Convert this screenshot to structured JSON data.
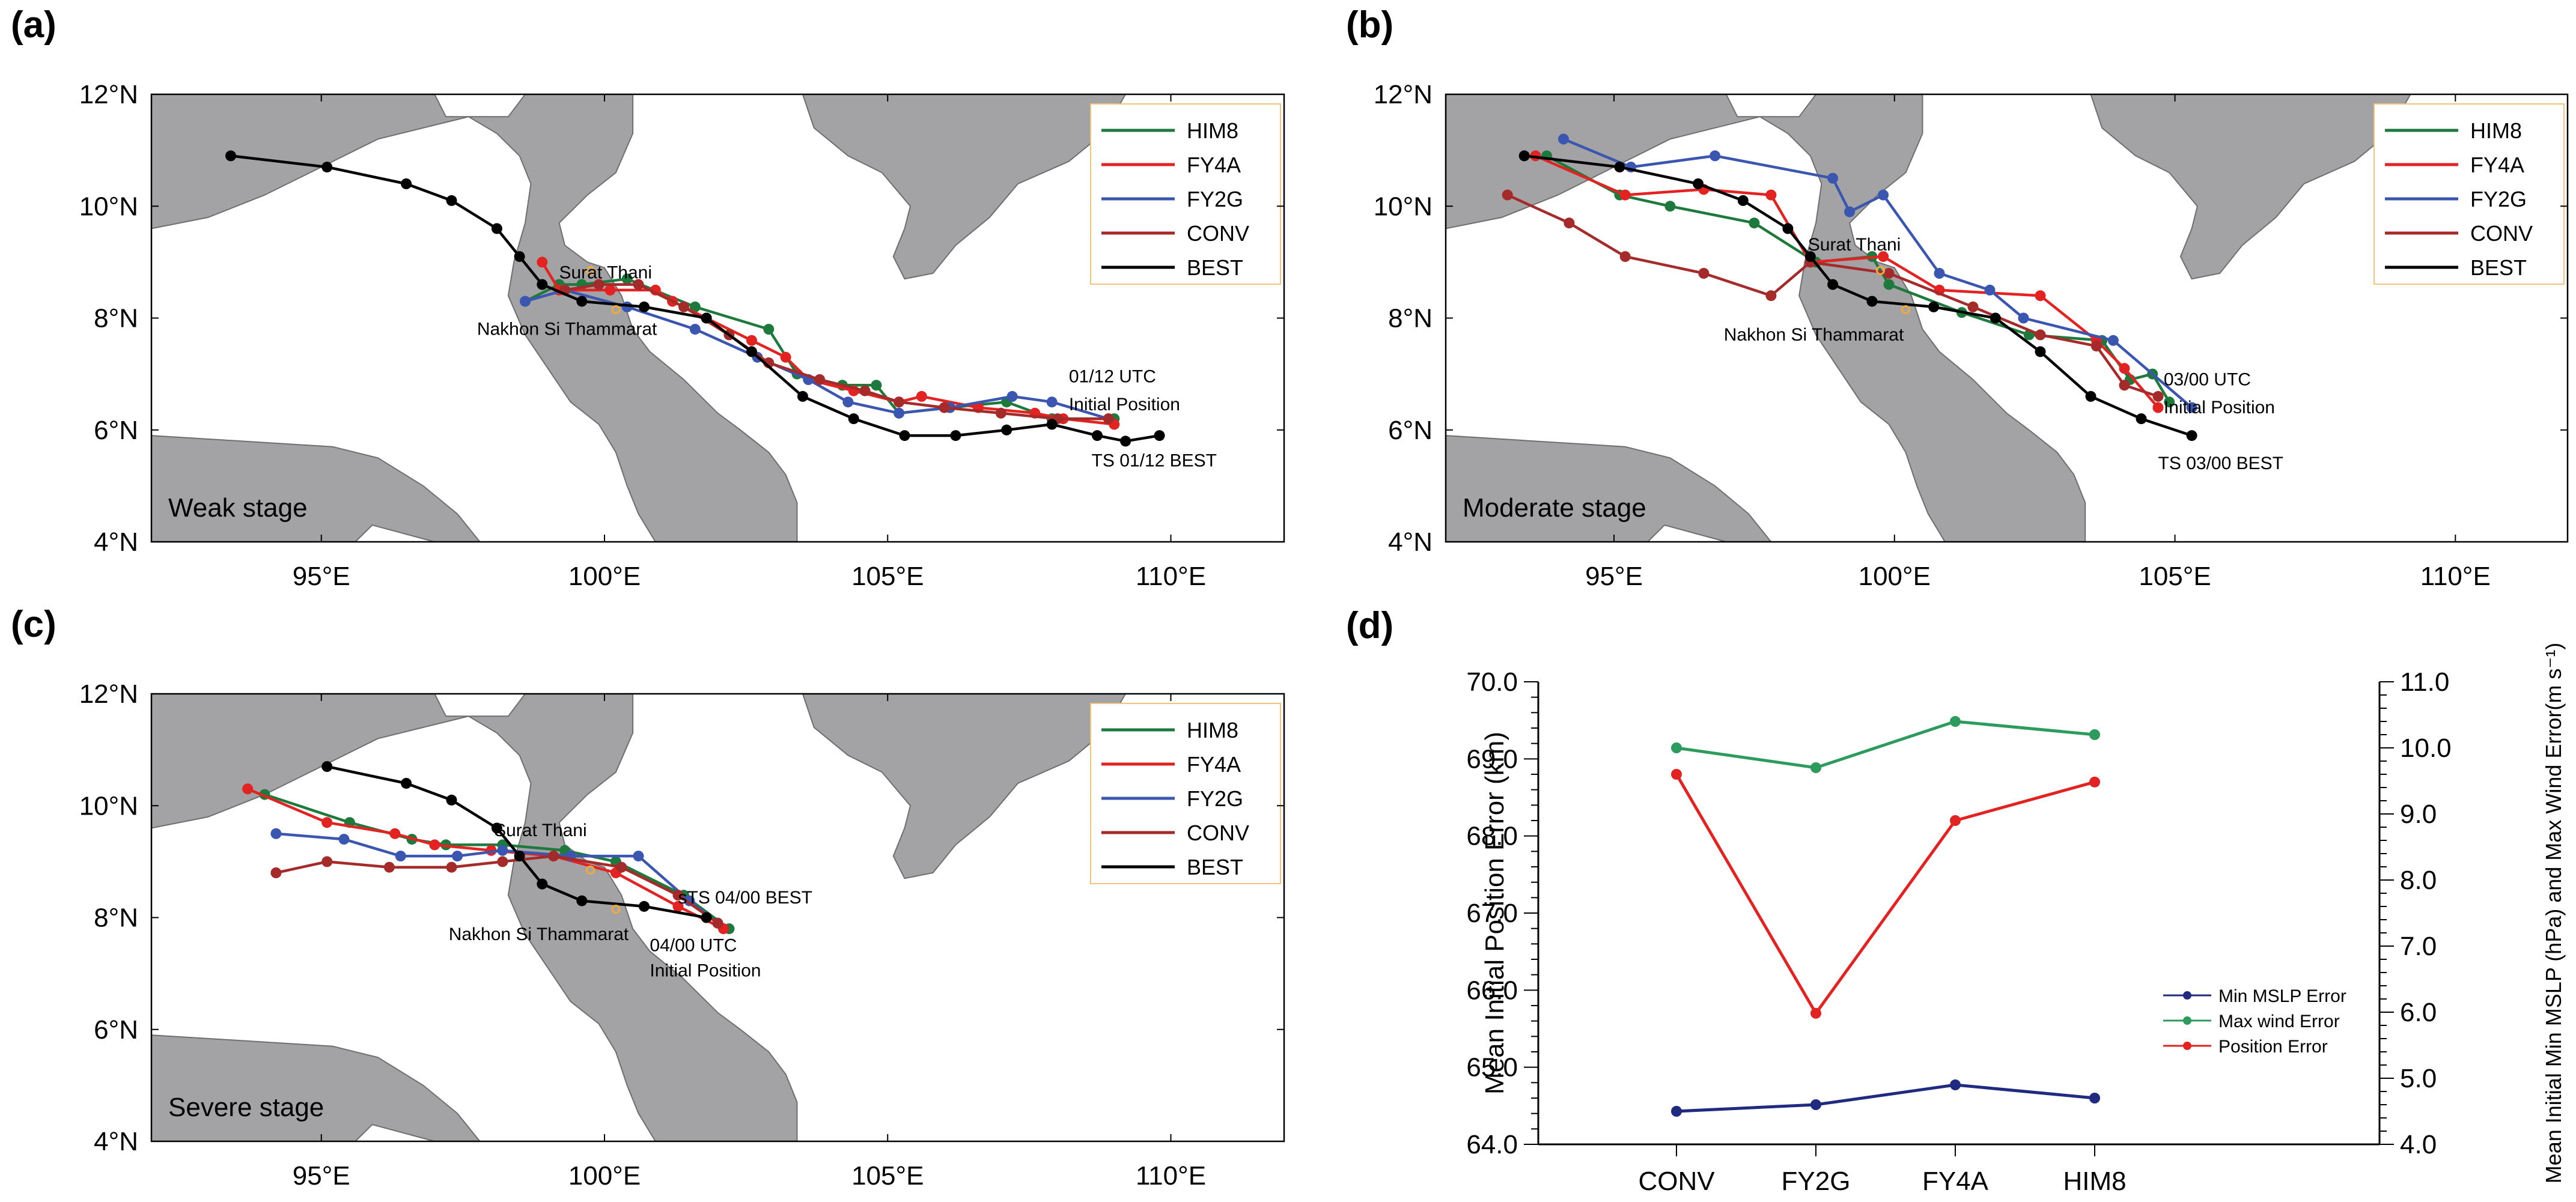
{
  "figure": {
    "panels": [
      {
        "id": "a",
        "label": "(a)",
        "stage_label": "Weak stage",
        "city_labels": [
          "Surat Thani",
          "Nakhon Si Thammarat"
        ],
        "initial_time_label": "01/12 UTC",
        "initial_position_label": "Initial  Position",
        "best_label": "TS 01/12 BEST",
        "x_ticks": [
          "95°E",
          "100°E",
          "105°E",
          "110°E"
        ],
        "y_ticks": [
          "4°N",
          "6°N",
          "8°N",
          "10°N",
          "12°N"
        ],
        "legend": [
          "HIM8",
          "FY4A",
          "FY2G",
          "CONV",
          "BEST"
        ]
      },
      {
        "id": "b",
        "label": "(b)",
        "stage_label": "Moderate stage",
        "city_labels": [
          "Surat Thani",
          "Nakhon Si Thammarat"
        ],
        "initial_time_label": "03/00  UTC",
        "initial_position_label": "Initial  Position",
        "best_label": "TS 03/00 BEST",
        "x_ticks": [
          "95°E",
          "100°E",
          "105°E",
          "110°E"
        ],
        "y_ticks": [
          "4°N",
          "6°N",
          "8°N",
          "10°N",
          "12°N"
        ],
        "legend": [
          "HIM8",
          "FY4A",
          "FY2G",
          "CONV",
          "BEST"
        ]
      },
      {
        "id": "c",
        "label": "(c)",
        "stage_label": "Severe stage",
        "city_labels": [
          "Surat Thani",
          "Nakhon Si Thammarat"
        ],
        "initial_time_label": "04/00  UTC",
        "initial_position_label": "Initial  Position",
        "best_label": "sTS 04/00 BEST",
        "x_ticks": [
          "95°E",
          "100°E",
          "105°E",
          "110°E"
        ],
        "y_ticks": [
          "4°N",
          "6°N",
          "8°N",
          "10°N",
          "12°N"
        ],
        "legend": [
          "HIM8",
          "FY4A",
          "FY2G",
          "CONV",
          "BEST"
        ]
      },
      {
        "id": "d",
        "label": "(d)",
        "ylabel_left": "Mean Initial Position Error (km)",
        "ylabel_right": "Mean Initial Min MSLP (hPa) and Max Wind Error(m s⁻¹)",
        "legend": [
          "Min MSLP Error",
          "Max wind Error",
          "Position Error"
        ]
      }
    ]
  },
  "chart_data": [
    {
      "type": "line",
      "panel": "a",
      "xlabel": "",
      "ylabel": "",
      "xlim": [
        92,
        112
      ],
      "ylim": [
        4,
        12
      ],
      "x_ticks": [
        95,
        100,
        105,
        110
      ],
      "y_ticks": [
        4,
        6,
        8,
        10,
        12
      ],
      "grid": false,
      "legend_position": "top-right",
      "series": [
        {
          "name": "HIM8",
          "color": "#1e7a3c",
          "points": [
            [
              109.0,
              6.2
            ],
            [
              107.9,
              6.2
            ],
            [
              107.1,
              6.5
            ],
            [
              106.1,
              6.4
            ],
            [
              105.2,
              6.3
            ],
            [
              104.8,
              6.8
            ],
            [
              104.2,
              6.8
            ],
            [
              103.4,
              7.0
            ],
            [
              102.9,
              7.8
            ],
            [
              101.6,
              8.2
            ],
            [
              100.4,
              8.7
            ],
            [
              99.6,
              8.6
            ],
            [
              99.2,
              8.6
            ],
            [
              98.6,
              8.3
            ]
          ]
        },
        {
          "name": "FY4A",
          "color": "#e32222",
          "points": [
            [
              109.0,
              6.1
            ],
            [
              108.1,
              6.2
            ],
            [
              107.6,
              6.3
            ],
            [
              106.6,
              6.4
            ],
            [
              105.6,
              6.6
            ],
            [
              105.2,
              6.5
            ],
            [
              104.4,
              6.7
            ],
            [
              103.6,
              6.9
            ],
            [
              103.2,
              7.3
            ],
            [
              102.6,
              7.6
            ],
            [
              101.8,
              8.0
            ],
            [
              101.2,
              8.3
            ],
            [
              100.9,
              8.5
            ],
            [
              100.1,
              8.5
            ],
            [
              99.2,
              8.5
            ],
            [
              98.9,
              9.0
            ]
          ]
        },
        {
          "name": "FY2G",
          "color": "#3a56b0",
          "points": [
            [
              108.9,
              6.2
            ],
            [
              107.9,
              6.5
            ],
            [
              107.2,
              6.6
            ],
            [
              106.1,
              6.4
            ],
            [
              105.2,
              6.3
            ],
            [
              104.3,
              6.5
            ],
            [
              103.6,
              6.9
            ],
            [
              102.7,
              7.3
            ],
            [
              101.6,
              7.8
            ],
            [
              100.4,
              8.2
            ],
            [
              99.3,
              8.5
            ],
            [
              98.6,
              8.3
            ]
          ]
        },
        {
          "name": "CONV",
          "color": "#a52a2a",
          "points": [
            [
              108.9,
              6.2
            ],
            [
              108.0,
              6.2
            ],
            [
              107.0,
              6.3
            ],
            [
              106.0,
              6.4
            ],
            [
              105.2,
              6.5
            ],
            [
              104.6,
              6.7
            ],
            [
              103.8,
              6.9
            ],
            [
              102.9,
              7.2
            ],
            [
              102.2,
              7.7
            ],
            [
              101.4,
              8.2
            ],
            [
              100.6,
              8.6
            ],
            [
              99.9,
              8.6
            ],
            [
              99.3,
              8.5
            ]
          ]
        },
        {
          "name": "BEST",
          "color": "#000000",
          "points": [
            [
              109.8,
              5.9
            ],
            [
              109.2,
              5.8
            ],
            [
              108.7,
              5.9
            ],
            [
              107.9,
              6.1
            ],
            [
              107.1,
              6.0
            ],
            [
              106.2,
              5.9
            ],
            [
              105.3,
              5.9
            ],
            [
              104.4,
              6.2
            ],
            [
              103.5,
              6.6
            ],
            [
              102.6,
              7.4
            ],
            [
              101.8,
              8.0
            ],
            [
              100.7,
              8.2
            ],
            [
              99.6,
              8.3
            ],
            [
              98.9,
              8.6
            ],
            [
              98.5,
              9.1
            ],
            [
              98.1,
              9.6
            ],
            [
              97.3,
              10.1
            ],
            [
              96.5,
              10.4
            ],
            [
              95.1,
              10.7
            ],
            [
              93.4,
              10.9
            ]
          ]
        }
      ]
    },
    {
      "type": "line",
      "panel": "b",
      "xlabel": "",
      "ylabel": "",
      "xlim": [
        92,
        112
      ],
      "ylim": [
        4,
        12
      ],
      "x_ticks": [
        95,
        100,
        105,
        110
      ],
      "y_ticks": [
        4,
        6,
        8,
        10,
        12
      ],
      "grid": false,
      "legend_position": "top-right",
      "series": [
        {
          "name": "HIM8",
          "color": "#1e7a3c",
          "points": [
            [
              104.9,
              6.5
            ],
            [
              104.6,
              7.0
            ],
            [
              104.2,
              6.9
            ],
            [
              103.7,
              7.6
            ],
            [
              102.4,
              7.7
            ],
            [
              101.2,
              8.1
            ],
            [
              99.9,
              8.6
            ],
            [
              99.6,
              9.1
            ],
            [
              98.6,
              9.0
            ],
            [
              97.5,
              9.7
            ],
            [
              96.0,
              10.0
            ],
            [
              95.1,
              10.2
            ],
            [
              93.8,
              10.9
            ]
          ]
        },
        {
          "name": "FY4A",
          "color": "#e32222",
          "points": [
            [
              104.7,
              6.4
            ],
            [
              104.1,
              7.1
            ],
            [
              103.6,
              7.6
            ],
            [
              102.6,
              8.4
            ],
            [
              100.8,
              8.5
            ],
            [
              99.8,
              9.1
            ],
            [
              98.5,
              9.0
            ],
            [
              97.8,
              10.2
            ],
            [
              96.6,
              10.3
            ],
            [
              95.2,
              10.2
            ],
            [
              93.6,
              10.9
            ]
          ]
        },
        {
          "name": "FY2G",
          "color": "#3a56b0",
          "points": [
            [
              105.3,
              6.4
            ],
            [
              103.9,
              7.6
            ],
            [
              102.3,
              8.0
            ],
            [
              101.7,
              8.5
            ],
            [
              100.8,
              8.8
            ],
            [
              99.8,
              10.2
            ],
            [
              99.2,
              9.9
            ],
            [
              98.9,
              10.5
            ],
            [
              96.8,
              10.9
            ],
            [
              95.3,
              10.7
            ],
            [
              94.1,
              11.2
            ]
          ]
        },
        {
          "name": "CONV",
          "color": "#a52a2a",
          "points": [
            [
              104.7,
              6.6
            ],
            [
              104.1,
              6.8
            ],
            [
              103.6,
              7.5
            ],
            [
              102.6,
              7.7
            ],
            [
              101.4,
              8.2
            ],
            [
              99.9,
              8.8
            ],
            [
              98.5,
              9.0
            ],
            [
              97.8,
              8.4
            ],
            [
              96.6,
              8.8
            ],
            [
              95.2,
              9.1
            ],
            [
              94.2,
              9.7
            ],
            [
              93.1,
              10.2
            ]
          ]
        },
        {
          "name": "BEST",
          "color": "#000000",
          "points": [
            [
              105.3,
              5.9
            ],
            [
              104.4,
              6.2
            ],
            [
              103.5,
              6.6
            ],
            [
              102.6,
              7.4
            ],
            [
              101.8,
              8.0
            ],
            [
              100.7,
              8.2
            ],
            [
              99.6,
              8.3
            ],
            [
              98.9,
              8.6
            ],
            [
              98.5,
              9.1
            ],
            [
              98.1,
              9.6
            ],
            [
              97.3,
              10.1
            ],
            [
              96.5,
              10.4
            ],
            [
              95.1,
              10.7
            ],
            [
              93.4,
              10.9
            ]
          ]
        }
      ]
    },
    {
      "type": "line",
      "panel": "c",
      "xlabel": "",
      "ylabel": "",
      "xlim": [
        92,
        112
      ],
      "ylim": [
        4,
        12
      ],
      "x_ticks": [
        95,
        100,
        105,
        110
      ],
      "y_ticks": [
        4,
        6,
        8,
        10,
        12
      ],
      "grid": false,
      "legend_position": "top-right",
      "series": [
        {
          "name": "HIM8",
          "color": "#1e7a3c",
          "points": [
            [
              102.2,
              7.8
            ],
            [
              101.4,
              8.4
            ],
            [
              100.2,
              9.0
            ],
            [
              99.3,
              9.2
            ],
            [
              98.2,
              9.3
            ],
            [
              97.2,
              9.3
            ],
            [
              96.6,
              9.4
            ],
            [
              95.5,
              9.7
            ],
            [
              94.0,
              10.2
            ]
          ]
        },
        {
          "name": "FY4A",
          "color": "#e32222",
          "points": [
            [
              102.1,
              7.8
            ],
            [
              101.3,
              8.2
            ],
            [
              100.2,
              8.8
            ],
            [
              99.1,
              9.1
            ],
            [
              98.0,
              9.2
            ],
            [
              97.0,
              9.3
            ],
            [
              96.3,
              9.5
            ],
            [
              95.1,
              9.7
            ],
            [
              93.7,
              10.3
            ]
          ]
        },
        {
          "name": "FY2G",
          "color": "#3a56b0",
          "points": [
            [
              102.0,
              7.9
            ],
            [
              101.5,
              8.3
            ],
            [
              100.6,
              9.1
            ],
            [
              99.4,
              9.1
            ],
            [
              98.2,
              9.2
            ],
            [
              97.4,
              9.1
            ],
            [
              96.4,
              9.1
            ],
            [
              95.4,
              9.4
            ],
            [
              94.2,
              9.5
            ]
          ]
        },
        {
          "name": "CONV",
          "color": "#a52a2a",
          "points": [
            [
              102.0,
              7.9
            ],
            [
              101.3,
              8.4
            ],
            [
              100.3,
              8.9
            ],
            [
              99.1,
              9.1
            ],
            [
              98.2,
              9.0
            ],
            [
              97.3,
              8.9
            ],
            [
              96.2,
              8.9
            ],
            [
              95.1,
              9.0
            ],
            [
              94.2,
              8.8
            ]
          ]
        },
        {
          "name": "BEST",
          "color": "#000000",
          "points": [
            [
              101.8,
              8.0
            ],
            [
              100.7,
              8.2
            ],
            [
              99.6,
              8.3
            ],
            [
              98.9,
              8.6
            ],
            [
              98.5,
              9.1
            ],
            [
              98.1,
              9.6
            ],
            [
              97.3,
              10.1
            ],
            [
              96.5,
              10.4
            ],
            [
              95.1,
              10.7
            ]
          ]
        }
      ]
    },
    {
      "type": "line",
      "panel": "d",
      "categories": [
        "CONV",
        "FY2G",
        "FY4A",
        "HIM8"
      ],
      "ylabel": "Mean Initial Position Error (km)",
      "ylabel_right": "Mean Initial Min MSLP (hPa) and Max Wind Error(m s⁻¹)",
      "ylim": [
        64.0,
        70.0
      ],
      "ylim_right": [
        4.0,
        11.0
      ],
      "y_ticks": [
        "64.0",
        "65.0",
        "66.0",
        "67.0",
        "68.0",
        "69.0",
        "70.0"
      ],
      "y_ticks_right": [
        "4.0",
        "5.0",
        "6.0",
        "7.0",
        "8.0",
        "9.0",
        "10.0",
        "11.0"
      ],
      "grid": false,
      "legend_position": "bottom-right",
      "series": [
        {
          "name": "Min MSLP Error",
          "axis": "right",
          "color": "#1f2a80",
          "values": [
            4.5,
            4.6,
            4.9,
            4.7
          ]
        },
        {
          "name": "Max wind Error",
          "axis": "right",
          "color": "#2e9b5e",
          "values": [
            10.0,
            9.7,
            10.4,
            10.2
          ]
        },
        {
          "name": "Position Error",
          "axis": "left",
          "color": "#e32222",
          "values": [
            68.8,
            65.7,
            68.2,
            68.7
          ]
        }
      ]
    }
  ]
}
